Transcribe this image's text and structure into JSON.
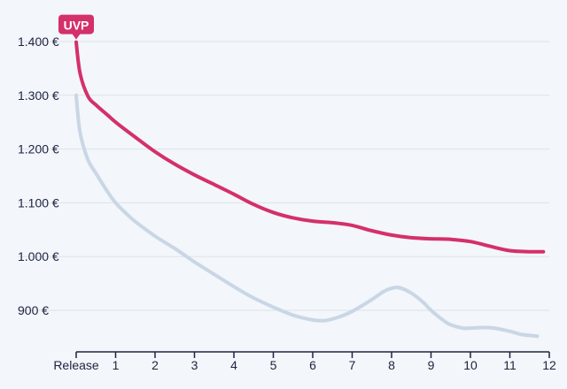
{
  "chart_data": {
    "type": "line",
    "title": "",
    "xlabel": "",
    "ylabel": "",
    "x_ticks": [
      {
        "x": 0,
        "label": "Release"
      },
      {
        "x": 1,
        "label": "1"
      },
      {
        "x": 2,
        "label": "2"
      },
      {
        "x": 3,
        "label": "3"
      },
      {
        "x": 4,
        "label": "4"
      },
      {
        "x": 5,
        "label": "5"
      },
      {
        "x": 6,
        "label": "6"
      },
      {
        "x": 7,
        "label": "7"
      },
      {
        "x": 8,
        "label": "8"
      },
      {
        "x": 9,
        "label": "9"
      },
      {
        "x": 10,
        "label": "10"
      },
      {
        "x": 11,
        "label": "11"
      },
      {
        "x": 12,
        "label": "12"
      }
    ],
    "y_ticks": [
      {
        "y": 900,
        "label": "900 €"
      },
      {
        "y": 1000,
        "label": "1.000 €"
      },
      {
        "y": 1100,
        "label": "1.100 €"
      },
      {
        "y": 1200,
        "label": "1.200 €"
      },
      {
        "y": 1300,
        "label": "1.300 €"
      },
      {
        "y": 1400,
        "label": "1.400 €"
      }
    ],
    "xlim": [
      0,
      12
    ],
    "ylim": [
      860,
      1430
    ],
    "grid": true,
    "series": [
      {
        "name": "",
        "color": "#c9d6e6",
        "points": [
          [
            0,
            1300
          ],
          [
            0.1,
            1230
          ],
          [
            0.3,
            1180
          ],
          [
            0.5,
            1155
          ],
          [
            0.8,
            1120
          ],
          [
            1,
            1100
          ],
          [
            1.3,
            1078
          ],
          [
            1.5,
            1065
          ],
          [
            2,
            1038
          ],
          [
            2.5,
            1015
          ],
          [
            3,
            990
          ],
          [
            3.5,
            967
          ],
          [
            4,
            944
          ],
          [
            4.5,
            923
          ],
          [
            5,
            906
          ],
          [
            5.5,
            891
          ],
          [
            6,
            882
          ],
          [
            6.3,
            881
          ],
          [
            6.6,
            886
          ],
          [
            7,
            898
          ],
          [
            7.5,
            920
          ],
          [
            7.8,
            935
          ],
          [
            8,
            941
          ],
          [
            8.2,
            942
          ],
          [
            8.5,
            932
          ],
          [
            8.8,
            915
          ],
          [
            9,
            900
          ],
          [
            9.3,
            882
          ],
          [
            9.5,
            873
          ],
          [
            9.8,
            867
          ],
          [
            10,
            867
          ],
          [
            10.3,
            868
          ],
          [
            10.6,
            867
          ],
          [
            11,
            861
          ],
          [
            11.3,
            855
          ],
          [
            11.7,
            852
          ]
        ]
      },
      {
        "name": "UVP",
        "color": "#d4306a",
        "points": [
          [
            0,
            1399
          ],
          [
            0.1,
            1340
          ],
          [
            0.3,
            1298
          ],
          [
            0.5,
            1282
          ],
          [
            0.8,
            1263
          ],
          [
            1,
            1250
          ],
          [
            1.5,
            1222
          ],
          [
            2,
            1195
          ],
          [
            2.5,
            1172
          ],
          [
            3,
            1152
          ],
          [
            3.5,
            1134
          ],
          [
            4,
            1116
          ],
          [
            4.5,
            1097
          ],
          [
            5,
            1082
          ],
          [
            5.5,
            1072
          ],
          [
            6,
            1066
          ],
          [
            6.5,
            1063
          ],
          [
            7,
            1058
          ],
          [
            7.5,
            1048
          ],
          [
            8,
            1040
          ],
          [
            8.5,
            1035
          ],
          [
            9,
            1033
          ],
          [
            9.5,
            1032
          ],
          [
            10,
            1028
          ],
          [
            10.5,
            1019
          ],
          [
            11,
            1011
          ],
          [
            11.5,
            1009
          ],
          [
            11.85,
            1009
          ]
        ]
      }
    ],
    "callout": {
      "label": "UVP",
      "series": "UVP",
      "at_x": 0,
      "color": "#d4306a"
    }
  }
}
